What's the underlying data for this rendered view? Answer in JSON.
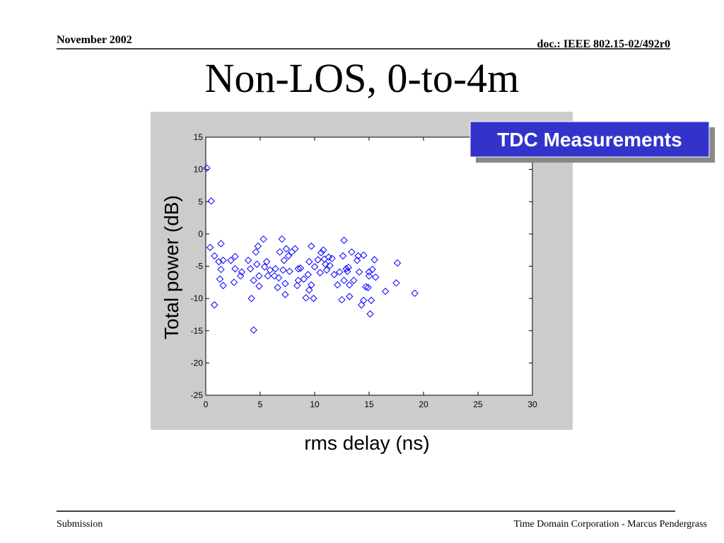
{
  "header": {
    "date": "November 2002",
    "doc": "doc.: IEEE 802.15-02/492r0"
  },
  "footer": {
    "left": "Submission",
    "right": "Time Domain Corporation - Marcus Pendergrass"
  },
  "chart_data": {
    "type": "scatter",
    "title": "Non-LOS, 0-to-4m",
    "x_label": "rms delay (ns)",
    "y_label": "Total power (dB)",
    "annotation": "TDC Measurements",
    "xlim": [
      0,
      30
    ],
    "ylim": [
      -25,
      15
    ],
    "xticks": [
      0,
      5,
      10,
      15,
      20,
      25,
      30
    ],
    "yticks": [
      -25,
      -20,
      -15,
      -10,
      -5,
      0,
      5,
      10,
      15
    ],
    "color": "#0000ff",
    "x": [
      0.1,
      0.5,
      0.4,
      0.8,
      0.8,
      1.4,
      1.2,
      1.6,
      1.4,
      1.3,
      1.6,
      2.3,
      2.7,
      2.7,
      2.6,
      3.2,
      3.3,
      3.9,
      4.1,
      4.2,
      4.4,
      4.4,
      4.6,
      4.8,
      4.7,
      4.9,
      4.9,
      5.3,
      5.4,
      5.6,
      5.7,
      5.9,
      6.3,
      6.4,
      6.7,
      6.6,
      6.8,
      7.0,
      7.1,
      7.2,
      7.3,
      7.3,
      7.4,
      7.6,
      7.7,
      7.9,
      8.2,
      8.4,
      8.5,
      8.5,
      8.7,
      9.0,
      9.2,
      9.4,
      9.5,
      9.5,
      9.7,
      9.9,
      9.7,
      10.0,
      10.3,
      10.5,
      10.6,
      10.8,
      10.9,
      11.0,
      11.1,
      11.3,
      11.4,
      11.6,
      11.8,
      12.1,
      12.3,
      12.5,
      12.6,
      12.7,
      12.7,
      12.9,
      13.0,
      13.1,
      13.2,
      13.2,
      13.4,
      13.6,
      13.9,
      14.0,
      14.1,
      14.3,
      14.5,
      14.5,
      14.7,
      14.9,
      15.0,
      15.0,
      15.1,
      15.2,
      15.3,
      15.5,
      15.6,
      16.5,
      17.5,
      17.6,
      19.2
    ],
    "values": [
      10.2,
      5.1,
      -2.1,
      -3.4,
      -11,
      -1.5,
      -4.3,
      -4.1,
      -5.5,
      -7.0,
      -8.0,
      -4.1,
      -3.5,
      -5.4,
      -7.5,
      -6.5,
      -5.9,
      -4.1,
      -5.4,
      -10,
      -14.9,
      -7.2,
      -2.8,
      -1.9,
      -4.7,
      -8.1,
      -6.5,
      -0.8,
      -5.1,
      -4.3,
      -6.5,
      -5.6,
      -6.5,
      -5.4,
      -6.8,
      -8.3,
      -2.8,
      -0.8,
      -5.6,
      -4.1,
      -7.7,
      -9.4,
      -2.3,
      -3.4,
      -5.8,
      -2.8,
      -2.3,
      -8.0,
      -5.4,
      -7.2,
      -5.3,
      -7.0,
      -9.9,
      -6.3,
      -4.3,
      -8.7,
      -1.9,
      -10,
      -7.9,
      -5.1,
      -4.0,
      -6.0,
      -2.9,
      -2.5,
      -3.9,
      -4.7,
      -5.6,
      -3.6,
      -4.9,
      -3.8,
      -6.3,
      -7.9,
      -5.9,
      -10.2,
      -3.4,
      -1.0,
      -7.2,
      -5.4,
      -5.8,
      -5.2,
      -9.7,
      -7.9,
      -2.8,
      -7.2,
      -4.1,
      -3.4,
      -5.9,
      -11,
      -3.3,
      -10.3,
      -8.2,
      -8.3,
      -6.5,
      -5.9,
      -12.4,
      -10.3,
      -5.5,
      -4.0,
      -6.7,
      -8.9,
      -7.6,
      -4.5,
      -9.2
    ]
  }
}
